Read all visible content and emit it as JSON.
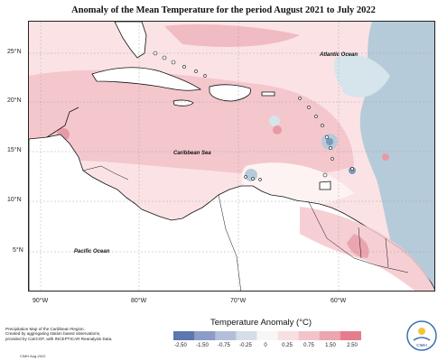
{
  "title": "Anomaly of the Mean Temperature for the period August 2021 to July 2022",
  "map": {
    "latitude_labels": [
      "25°N",
      "20°N",
      "15°N",
      "10°N",
      "5°N"
    ],
    "longitude_labels": [
      "90°W",
      "80°W",
      "70°W",
      "60°W"
    ],
    "ocean_labels": {
      "atlantic": "Atlantic Ocean",
      "caribbean": "Caribbean Sea",
      "pacific": "Pacific Ocean"
    },
    "colors": {
      "land_outline": "#111111",
      "strong_warm": "#e79aa6",
      "warm": "#f4c7cd",
      "weak_warm": "#fbe3e5",
      "near_zero": "#fdf3f3",
      "weak_cool": "#d6e4ec",
      "cool": "#b6cbd9",
      "strong_cool": "#7f97b8"
    }
  },
  "legend": {
    "title": "Temperature Anomaly (°C)",
    "ticks": [
      "-2.50",
      "-1.50",
      "-0.75",
      "-0.25",
      "0",
      "0.25",
      "0.75",
      "1.50",
      "2.50"
    ],
    "colors": [
      "#5c76b0",
      "#8c9cc7",
      "#b3bfd9",
      "#d5dde9",
      "#f7f7f7",
      "#f8dfe2",
      "#f3c3c9",
      "#eda5af",
      "#e57d8d"
    ]
  },
  "credits": {
    "lines": [
      "Precipitation Map of the Caribbean Region.",
      "Created by aggregating station based observations,",
      "provided by CariCOF, with INCEPTICAR Reanalysis Data."
    ],
    "date": "CIMH Aug-2022"
  },
  "logo": {
    "label": "CIMH"
  }
}
